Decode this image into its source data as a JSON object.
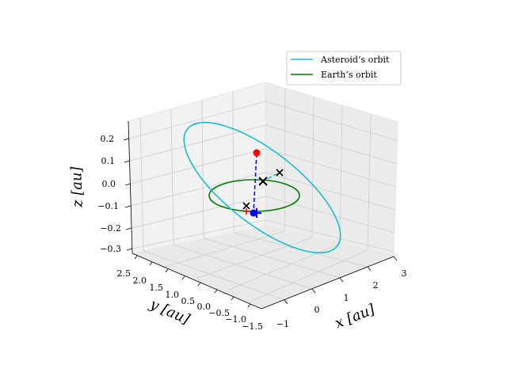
{
  "chart_data": {
    "type": "line3d",
    "title": "",
    "legend": {
      "placement": "top-right",
      "entries": [
        {
          "label": "Asteroid’s orbit",
          "color": "#17becf"
        },
        {
          "label": "Earth’s orbit",
          "color": "#008000"
        }
      ]
    },
    "axes": {
      "x": {
        "label": "x [au]",
        "ticks": [
          "−1",
          "0",
          "1",
          "2",
          "3"
        ]
      },
      "y": {
        "label": "y [au]",
        "ticks": [
          "−1.5",
          "−1.0",
          "−0.5",
          "0.0",
          "0.5",
          "1.0",
          "1.5",
          "2.0",
          "2.5"
        ]
      },
      "z": {
        "label": "z [au]",
        "ticks": [
          "−0.3",
          "−0.2",
          "−0.1",
          "0.0",
          "0.1",
          "0.2"
        ]
      },
      "grid": true
    },
    "series": [
      {
        "name": "Asteroid’s orbit",
        "kind": "ellipse",
        "color": "#17becf"
      },
      {
        "name": "Earth’s orbit",
        "kind": "ellipse",
        "color": "#008000"
      }
    ],
    "markers": [
      {
        "kind": "dot",
        "color": "#ff0000"
      },
      {
        "kind": "dot",
        "color": "#0000ff"
      },
      {
        "kind": "plus",
        "color": "#0000ff"
      },
      {
        "kind": "plus",
        "color": "#ff0000"
      },
      {
        "kind": "x",
        "color": "#000000"
      },
      {
        "kind": "x",
        "color": "#000000"
      },
      {
        "kind": "x",
        "color": "#000000"
      }
    ]
  }
}
